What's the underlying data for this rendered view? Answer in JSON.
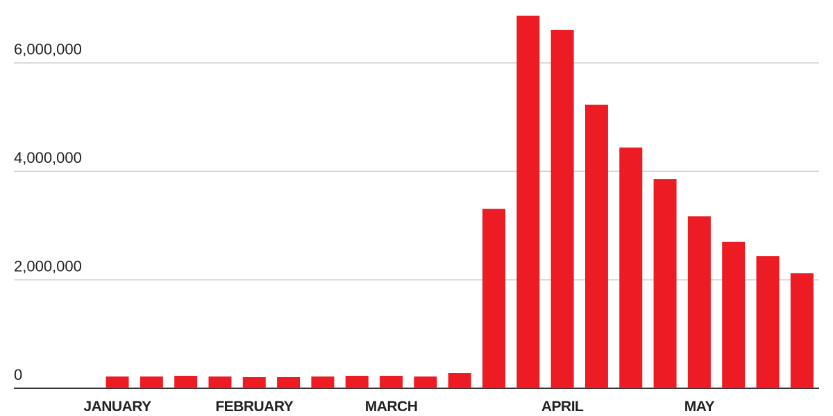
{
  "chart_data": {
    "type": "bar",
    "categories": [
      "JANUARY",
      null,
      null,
      null,
      "FEBRUARY",
      null,
      null,
      null,
      "MARCH",
      null,
      null,
      null,
      null,
      "APRIL",
      null,
      null,
      null,
      "MAY",
      null,
      null,
      null
    ],
    "values": [
      217000,
      217000,
      230000,
      217000,
      205000,
      205000,
      217000,
      230000,
      230000,
      217000,
      281000,
      3310000,
      6870000,
      6610000,
      5230000,
      4440000,
      3860000,
      3170000,
      2700000,
      2440000,
      2120000
    ],
    "color": "#ed1c24",
    "ylim": [
      0,
      7160000
    ],
    "yticks": [
      0,
      {
        "value": 2000000,
        "label": "2,000,000"
      },
      {
        "value": 4000000,
        "label": "4,000,000"
      },
      {
        "value": 6000000,
        "label": "6,000,000"
      }
    ],
    "grid": true
  }
}
